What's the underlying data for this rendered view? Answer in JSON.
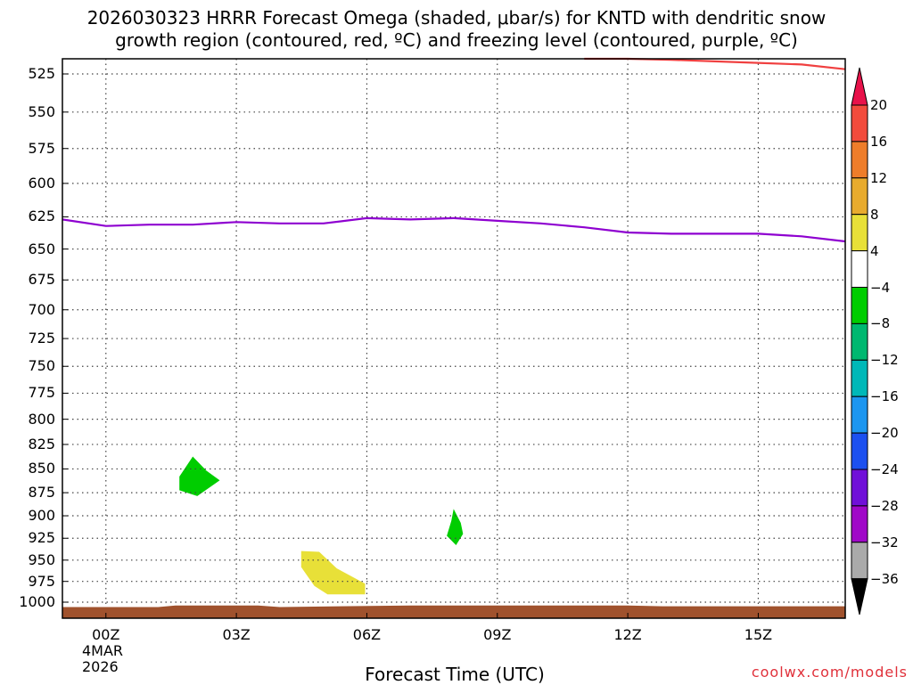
{
  "title_line1": "2026030323 HRRR Forecast Omega (shaded, μbar/s) for KNTD with dendritic snow",
  "title_line2": "growth region (contoured, red, ºC) and freezing level (contoured, purple, ºC)",
  "xlabel": "Forecast Time (UTC)",
  "date_line1": "4MAR",
  "date_line2": "2026",
  "credit": "coolwx.com/models",
  "chart_data": {
    "type": "heatmap",
    "x_unit": "forecast hour",
    "x_range": [
      -1,
      17
    ],
    "x_ticks": [
      {
        "hour": 0,
        "label": "00Z"
      },
      {
        "hour": 3,
        "label": "03Z"
      },
      {
        "hour": 6,
        "label": "06Z"
      },
      {
        "hour": 9,
        "label": "09Z"
      },
      {
        "hour": 12,
        "label": "12Z"
      },
      {
        "hour": 15,
        "label": "15Z"
      }
    ],
    "y_unit": "hPa",
    "y_scale": "log",
    "y_range": [
      515,
      1010
    ],
    "y_ticks": [
      525,
      550,
      575,
      600,
      625,
      650,
      675,
      700,
      725,
      750,
      775,
      800,
      825,
      850,
      875,
      900,
      925,
      950,
      975,
      1000
    ],
    "grid": true,
    "colorbar": {
      "levels": [
        20,
        16,
        12,
        8,
        4,
        -4,
        -8,
        -12,
        -16,
        -20,
        -24,
        -28,
        -32,
        -36
      ],
      "level_labels": [
        "20",
        "16",
        "12",
        "8",
        "4",
        "−4",
        "−8",
        "−12",
        "−16",
        "−20",
        "−24",
        "−28",
        "−32",
        "−36"
      ],
      "colors": [
        "#e8124a",
        "#f24b3c",
        "#ee7d2a",
        "#e8ab2e",
        "#e8e038",
        "#ffffff",
        "#00cd00",
        "#00b870",
        "#00b8b8",
        "#1c96f0",
        "#1c50f0",
        "#7010d8",
        "#a008c8",
        "#aaaaaa",
        "#000000"
      ]
    },
    "shaded_regions": [
      {
        "value_range": [
          -8,
          -4
        ],
        "color": "#00cd00",
        "outline": [
          [
            2.0,
            838
          ],
          [
            2.3,
            852
          ],
          [
            2.6,
            862
          ],
          [
            2.1,
            878
          ],
          [
            1.7,
            872
          ],
          [
            1.7,
            858
          ]
        ]
      },
      {
        "value_range": [
          -8,
          -4
        ],
        "color": "#00cd00",
        "outline": [
          [
            8.0,
            894
          ],
          [
            8.15,
            908
          ],
          [
            8.2,
            920
          ],
          [
            8.05,
            932
          ],
          [
            7.85,
            922
          ],
          [
            7.95,
            906
          ]
        ]
      },
      {
        "value_range": [
          4,
          8
        ],
        "color": "#e8e038",
        "outline": [
          [
            4.5,
            940
          ],
          [
            4.9,
            941
          ],
          [
            5.3,
            960
          ],
          [
            5.95,
            978
          ],
          [
            5.95,
            990
          ],
          [
            5.1,
            990
          ],
          [
            4.8,
            980
          ],
          [
            4.5,
            958
          ]
        ]
      }
    ],
    "series": [
      {
        "color": "#8e00d0",
        "x": [
          -1,
          0,
          1,
          2,
          3,
          4,
          5,
          6,
          7,
          8,
          9,
          10,
          11,
          12,
          13,
          14,
          15,
          16,
          17
        ],
        "y": [
          627,
          632,
          631,
          631,
          629,
          630,
          630,
          626,
          627,
          626,
          628,
          630,
          633,
          637,
          638,
          638,
          638,
          640,
          644
        ]
      },
      {
        "color": "#f04040",
        "x": [
          11.0,
          12,
          13,
          14,
          15,
          16,
          17
        ],
        "y": [
          510,
          513,
          516,
          517,
          518,
          519,
          522
        ]
      }
    ],
    "terrain": {
      "color": "#a0522d",
      "x": [
        -1,
        1.2,
        1.6,
        3.5,
        4.0,
        7.0,
        12.0,
        12.8,
        17.0
      ],
      "y": [
        1006,
        1006,
        1004,
        1004,
        1006,
        1004,
        1004,
        1005,
        1005
      ]
    }
  }
}
